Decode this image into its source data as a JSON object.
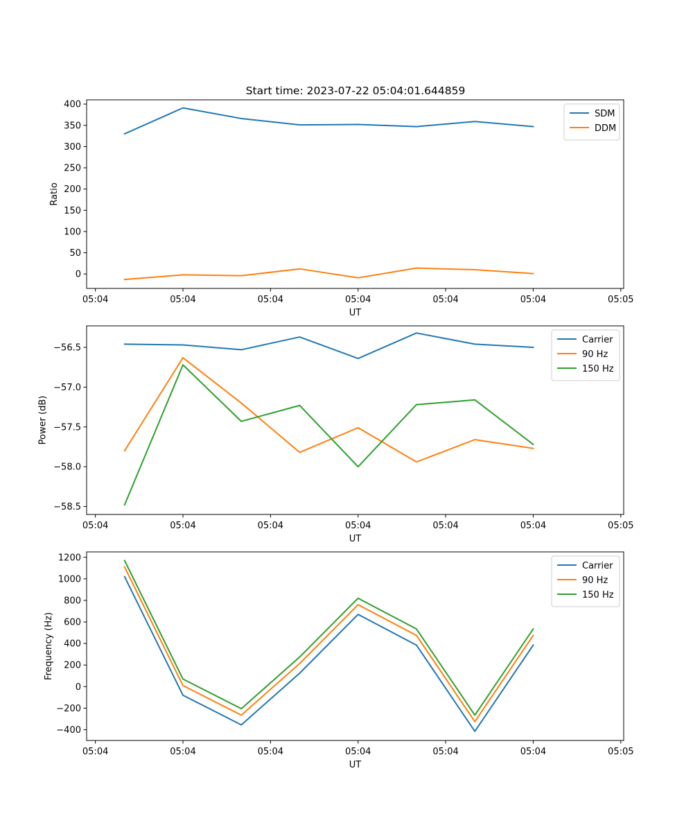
{
  "figure_title": "Start time: 2023-07-22 05:04:01.644859",
  "chart_data": [
    {
      "type": "line",
      "name": "ratio",
      "title": "Start time: 2023-07-22 05:04:01.644859",
      "xlabel": "UT",
      "ylabel": "Ratio",
      "xlim": [
        -0.65,
        8.55
      ],
      "ylim": [
        -34,
        410
      ],
      "xticks": [
        -0.5,
        1,
        2.5,
        4,
        5.5,
        7,
        8.5
      ],
      "xtick_labels": [
        "05:04",
        "05:04",
        "05:04",
        "05:04",
        "05:04",
        "05:04",
        "05:05"
      ],
      "yticks": [
        0,
        50,
        100,
        150,
        200,
        250,
        300,
        350,
        400
      ],
      "ytick_labels": [
        "0",
        "50",
        "100",
        "150",
        "200",
        "250",
        "300",
        "350",
        "400"
      ],
      "legend": "top-right",
      "x": [
        0,
        1,
        2,
        3,
        4,
        5,
        6,
        7
      ],
      "series": [
        {
          "name": "SDM",
          "color": "#1f77b4",
          "values": [
            330,
            391,
            366,
            351,
            352,
            347,
            359,
            347
          ]
        },
        {
          "name": "DDM",
          "color": "#ff7f0e",
          "values": [
            -13,
            -2,
            -4,
            12,
            -9,
            14,
            10,
            1
          ]
        }
      ]
    },
    {
      "type": "line",
      "name": "power",
      "title": "",
      "xlabel": "UT",
      "ylabel": "Power (dB)",
      "xlim": [
        -0.65,
        8.55
      ],
      "ylim": [
        -58.6,
        -56.23
      ],
      "xticks": [
        -0.5,
        1,
        2.5,
        4,
        5.5,
        7,
        8.5
      ],
      "xtick_labels": [
        "05:04",
        "05:04",
        "05:04",
        "05:04",
        "05:04",
        "05:04",
        "05:05"
      ],
      "yticks": [
        -58.5,
        -58.0,
        -57.5,
        -57.0,
        -56.5
      ],
      "ytick_labels": [
        "−58.5",
        "−58.0",
        "−57.5",
        "−57.0",
        "−56.5"
      ],
      "legend": "top-right",
      "x": [
        0,
        1,
        2,
        3,
        4,
        5,
        6,
        7
      ],
      "series": [
        {
          "name": "Carrier",
          "color": "#1f77b4",
          "values": [
            -56.46,
            -56.47,
            -56.53,
            -56.37,
            -56.64,
            -56.32,
            -56.46,
            -56.5
          ]
        },
        {
          "name": "90 Hz",
          "color": "#ff7f0e",
          "values": [
            -57.8,
            -56.63,
            -57.2,
            -57.82,
            -57.51,
            -57.94,
            -57.66,
            -57.77
          ]
        },
        {
          "name": "150 Hz",
          "color": "#2ca02c",
          "values": [
            -58.48,
            -56.72,
            -57.43,
            -57.23,
            -58.0,
            -57.22,
            -57.16,
            -57.72
          ]
        }
      ]
    },
    {
      "type": "line",
      "name": "frequency",
      "title": "",
      "xlabel": "UT",
      "ylabel": "Frequency (Hz)",
      "xlim": [
        -0.65,
        8.55
      ],
      "ylim": [
        -500,
        1250
      ],
      "xticks": [
        -0.5,
        1,
        2.5,
        4,
        5.5,
        7,
        8.5
      ],
      "xtick_labels": [
        "05:04",
        "05:04",
        "05:04",
        "05:04",
        "05:04",
        "05:04",
        "05:05"
      ],
      "yticks": [
        -400,
        -200,
        0,
        200,
        400,
        600,
        800,
        1000,
        1200
      ],
      "ytick_labels": [
        "−400",
        "−200",
        "0",
        "200",
        "400",
        "600",
        "800",
        "1000",
        "1200"
      ],
      "legend": "top-right",
      "x": [
        0,
        1,
        2,
        3,
        4,
        5,
        6,
        7
      ],
      "series": [
        {
          "name": "Carrier",
          "color": "#1f77b4",
          "values": [
            1020,
            -80,
            -355,
            125,
            670,
            385,
            -415,
            385
          ]
        },
        {
          "name": "90 Hz",
          "color": "#ff7f0e",
          "values": [
            1110,
            10,
            -265,
            215,
            760,
            475,
            -325,
            475
          ]
        },
        {
          "name": "150 Hz",
          "color": "#2ca02c",
          "values": [
            1170,
            70,
            -205,
            275,
            820,
            535,
            -265,
            535
          ]
        }
      ]
    }
  ]
}
